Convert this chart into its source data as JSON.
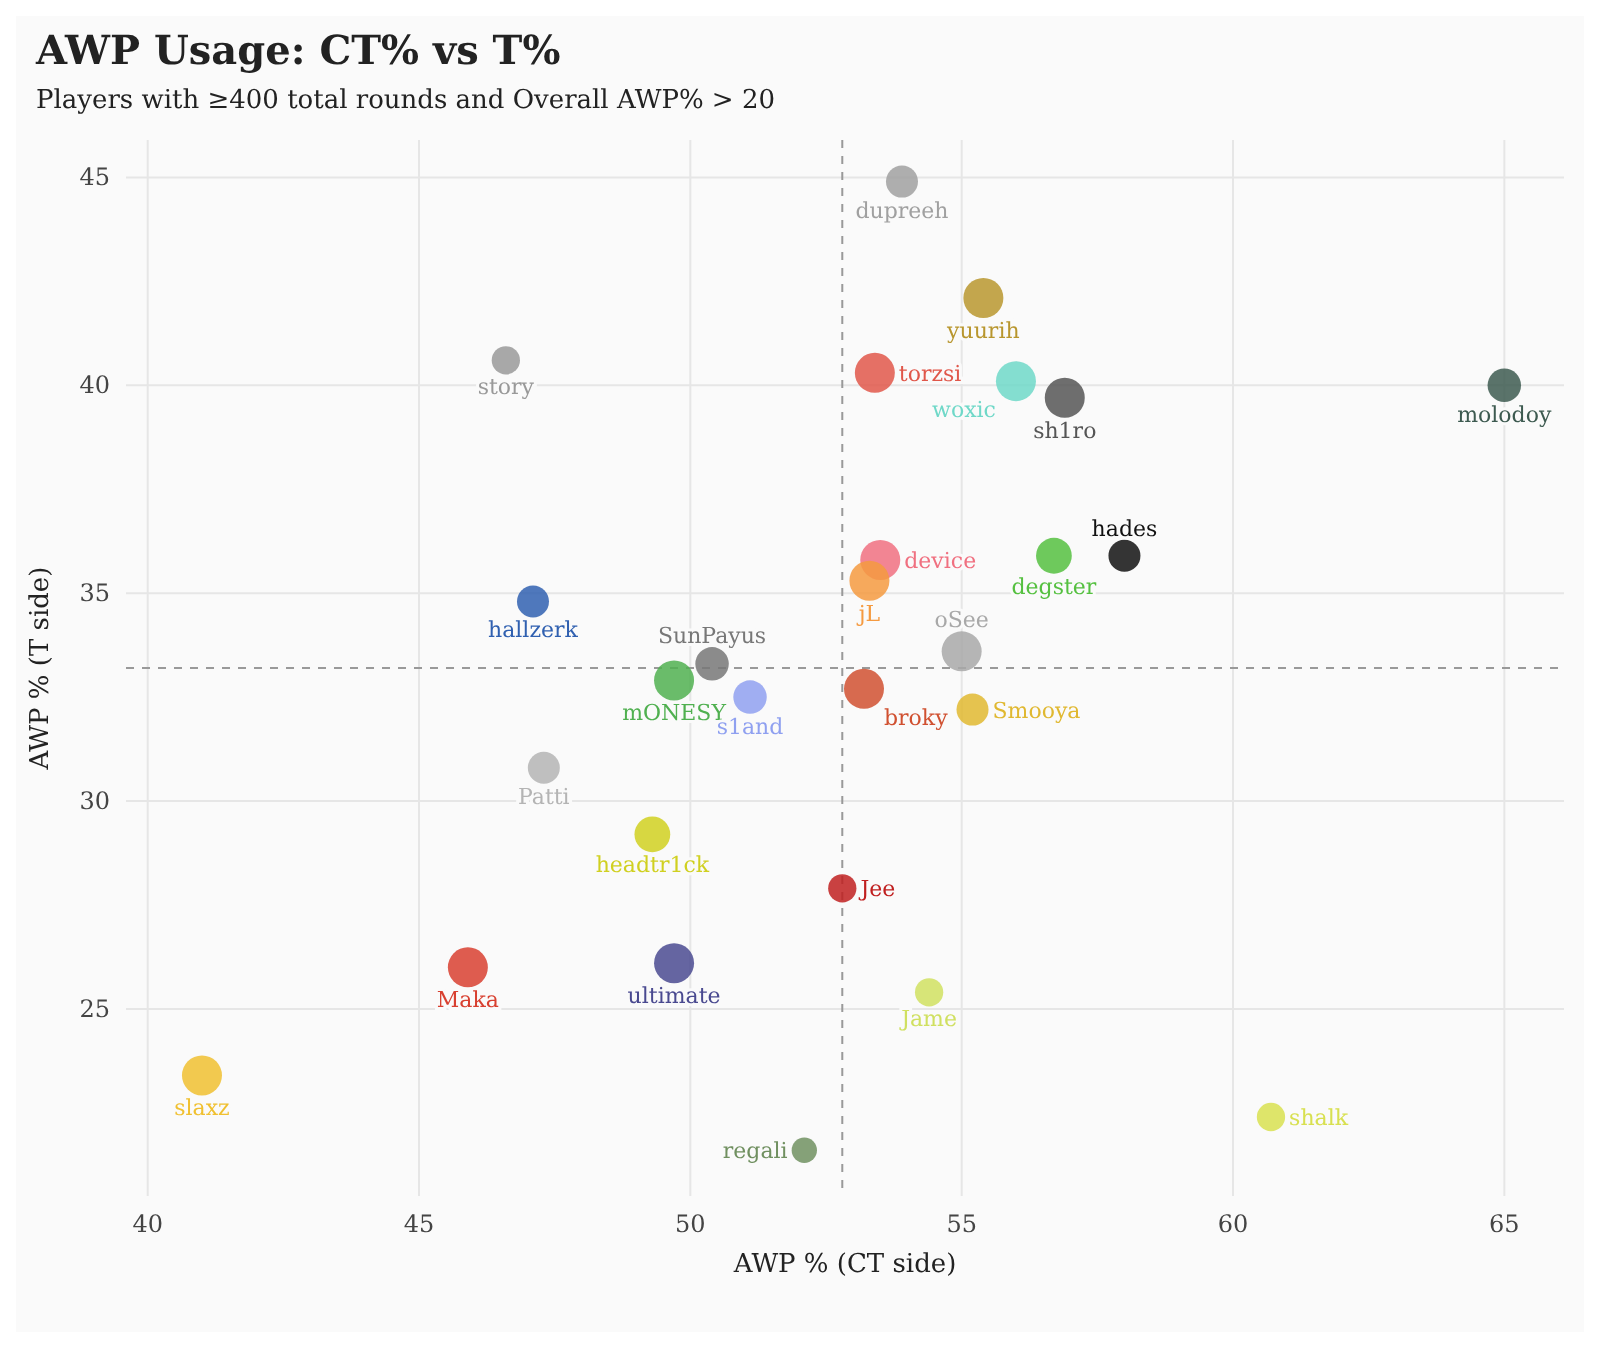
{
  "chart_data": {
    "type": "bubble",
    "title": "AWP Usage: CT% vs T%",
    "subtitle": "Players with ≥400 total rounds and Overall AWP% > 20",
    "xlabel": "AWP % (CT side)",
    "ylabel": "AWP % (T side)",
    "xlim": [
      39.6,
      66.1
    ],
    "xticks": [
      40,
      45,
      50,
      55,
      60,
      65
    ],
    "ylim": [
      20.5,
      45.9
    ],
    "yticks": [
      25,
      30,
      35,
      40,
      45
    ],
    "grid": true,
    "legend": false,
    "relative": false,
    "ref_lines": [
      {
        "axis": "x",
        "value": 52.8,
        "line_style": "dashed",
        "color": "#999999"
      },
      {
        "axis": "y",
        "value": 33.2,
        "line_style": "dashed",
        "color": "#999999"
      }
    ],
    "series": [
      {
        "name": "dupreeh",
        "color": "#a0a0a0",
        "x": [
          53.9
        ],
        "values": [
          44.9
        ],
        "sizes": [
          0.64
        ]
      },
      {
        "name": "story",
        "color": "#999999",
        "x": [
          46.6
        ],
        "values": [
          40.6
        ],
        "sizes": [
          0.5
        ]
      },
      {
        "name": "yuurih",
        "color": "#b8962e",
        "x": [
          55.4
        ],
        "values": [
          42.1
        ],
        "sizes": [
          1
        ]
      },
      {
        "name": "torzsi",
        "color": "#e0574a",
        "x": [
          53.4
        ],
        "values": [
          40.3
        ],
        "sizes": [
          1
        ]
      },
      {
        "name": "woxic",
        "color": "#6fd8c8",
        "x": [
          56
        ],
        "values": [
          40.1
        ],
        "sizes": [
          1
        ]
      },
      {
        "name": "sh1ro",
        "color": "#555555",
        "x": [
          56.9
        ],
        "values": [
          39.7
        ],
        "sizes": [
          1
        ]
      },
      {
        "name": "molodoy",
        "color": "#3d5a50",
        "x": [
          65
        ],
        "values": [
          40
        ],
        "sizes": [
          0.7
        ]
      },
      {
        "name": "device",
        "color": "#f07080",
        "x": [
          53.5
        ],
        "values": [
          35.8
        ],
        "sizes": [
          1
        ]
      },
      {
        "name": "degster",
        "color": "#55c040",
        "x": [
          56.7
        ],
        "values": [
          35.9
        ],
        "sizes": [
          0.8
        ]
      },
      {
        "name": "hades",
        "color": "#111111",
        "x": [
          58
        ],
        "values": [
          35.9
        ],
        "sizes": [
          0.64
        ]
      },
      {
        "name": "jL",
        "color": "#f59a40",
        "x": [
          53.3
        ],
        "values": [
          35.3
        ],
        "sizes": [
          1
        ]
      },
      {
        "name": "hallzerk",
        "color": "#3060b0",
        "x": [
          47.1
        ],
        "values": [
          34.8
        ],
        "sizes": [
          0.64
        ]
      },
      {
        "name": "SunPayus",
        "color": "#777777",
        "x": [
          50.4
        ],
        "values": [
          33.3
        ],
        "sizes": [
          0.7
        ]
      },
      {
        "name": "mONESY",
        "color": "#50b050",
        "x": [
          49.7
        ],
        "values": [
          32.9
        ],
        "sizes": [
          1
        ]
      },
      {
        "name": "s1and",
        "color": "#8fa0f0",
        "x": [
          51.1
        ],
        "values": [
          32.5
        ],
        "sizes": [
          0.7
        ]
      },
      {
        "name": "broky",
        "color": "#d05030",
        "x": [
          53.2
        ],
        "values": [
          32.7
        ],
        "sizes": [
          1
        ]
      },
      {
        "name": "oSee",
        "color": "#a8a8a8",
        "x": [
          55
        ],
        "values": [
          33.6
        ],
        "sizes": [
          1
        ]
      },
      {
        "name": "Smooya",
        "color": "#e0b830",
        "x": [
          55.2
        ],
        "values": [
          32.2
        ],
        "sizes": [
          0.64
        ]
      },
      {
        "name": "Patti",
        "color": "#b4b4b4",
        "x": [
          47.3
        ],
        "values": [
          30.8
        ],
        "sizes": [
          0.64
        ]
      },
      {
        "name": "headtr1ck",
        "color": "#d0d020",
        "x": [
          49.3
        ],
        "values": [
          29.2
        ],
        "sizes": [
          0.8
        ]
      },
      {
        "name": "Jee",
        "color": "#c02020",
        "x": [
          52.8
        ],
        "values": [
          27.9
        ],
        "sizes": [
          0.5
        ]
      },
      {
        "name": "Maka",
        "color": "#d84030",
        "x": [
          45.9
        ],
        "values": [
          26
        ],
        "sizes": [
          1
        ]
      },
      {
        "name": "ultimate",
        "color": "#4a4a90",
        "x": [
          49.7
        ],
        "values": [
          26.1
        ],
        "sizes": [
          1
        ]
      },
      {
        "name": "Jame",
        "color": "#d0e060",
        "x": [
          54.4
        ],
        "values": [
          25.4
        ],
        "sizes": [
          0.5
        ]
      },
      {
        "name": "slaxz",
        "color": "#f0c030",
        "x": [
          41
        ],
        "values": [
          23.4
        ],
        "sizes": [
          1
        ]
      },
      {
        "name": "regali",
        "color": "#709060",
        "x": [
          52.1
        ],
        "values": [
          21.6
        ],
        "sizes": [
          0.4
        ]
      },
      {
        "name": "shalk",
        "color": "#d8e050",
        "x": [
          60.7
        ],
        "values": [
          22.4
        ],
        "sizes": [
          0.5
        ]
      }
    ]
  }
}
